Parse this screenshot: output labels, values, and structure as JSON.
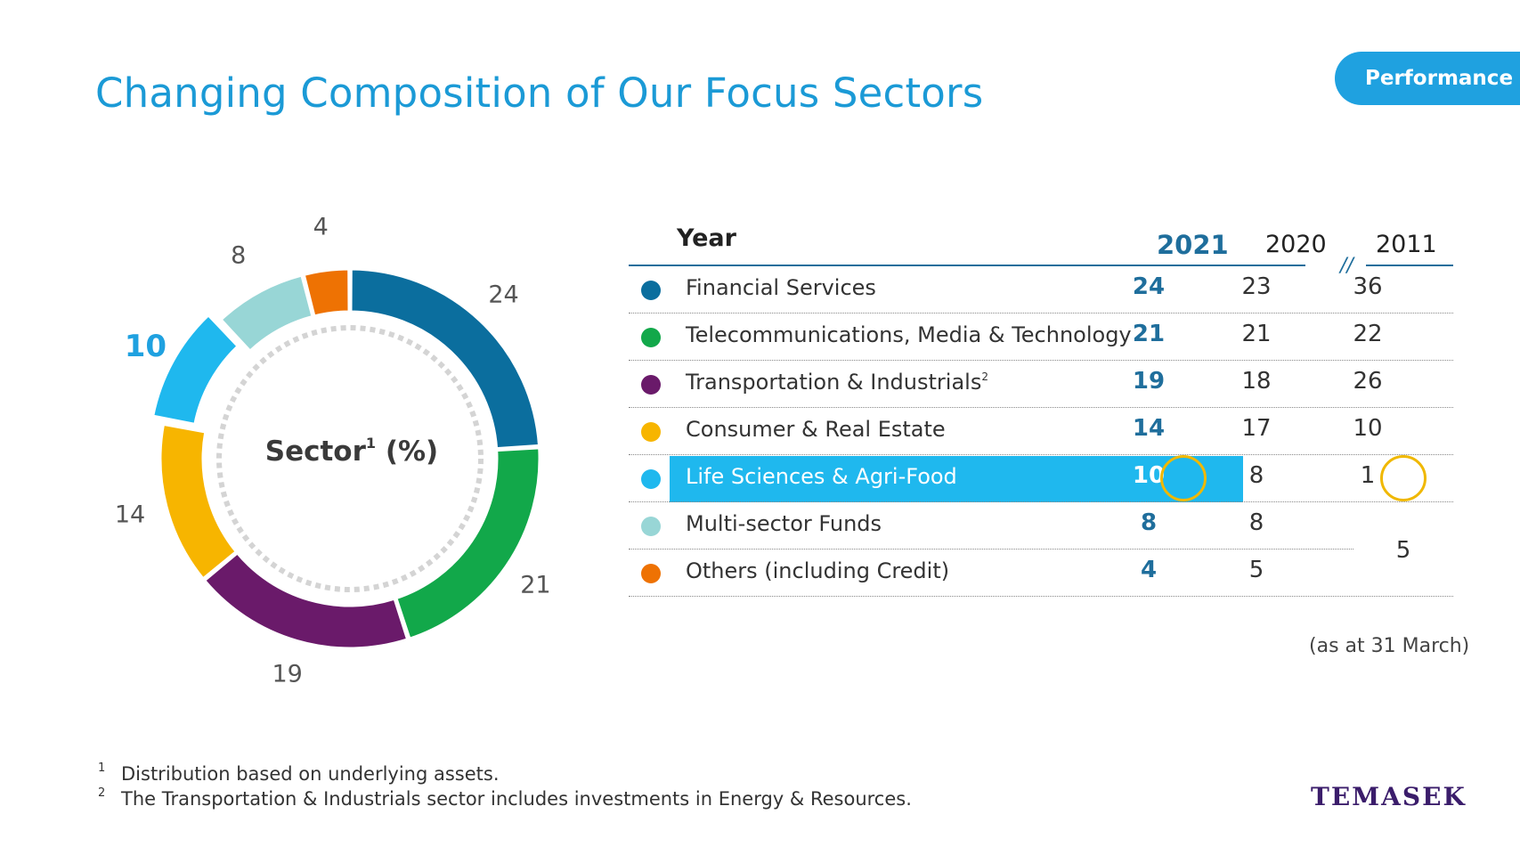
{
  "page": {
    "title": "Changing Composition of Our Focus Sectors",
    "badge": "Performance",
    "logo": "TEMASEK",
    "as_at_note": "(as at 31 March)",
    "footnotes": [
      {
        "num": "1",
        "text": "Distribution based on underlying assets."
      },
      {
        "num": "2",
        "text": "The Transportation & Industrials sector includes investments in Energy & Resources."
      }
    ]
  },
  "donut": {
    "center_label": "Sector",
    "center_sup": "1",
    "center_suffix": " (%)"
  },
  "table": {
    "year_header": "Year",
    "years": [
      "2021",
      "2020",
      "2011"
    ],
    "separator": "//",
    "merged_2011_value": "5",
    "rows": [
      {
        "label": "Financial Services",
        "sup": "",
        "color": "#0b6e9e",
        "v2021": "24",
        "v2020": "23",
        "v2011": "36"
      },
      {
        "label": "Telecommunications, Media & Technology",
        "sup": "",
        "color": "#12a84a",
        "v2021": "21",
        "v2020": "21",
        "v2011": "22"
      },
      {
        "label": "Transportation & Industrials",
        "sup": "2",
        "color": "#6a1a6a",
        "v2021": "19",
        "v2020": "18",
        "v2011": "26"
      },
      {
        "label": "Consumer & Real Estate",
        "sup": "",
        "color": "#f7b500",
        "v2021": "14",
        "v2020": "17",
        "v2011": "10"
      },
      {
        "label": "Life Sciences & Agri-Food",
        "sup": "",
        "color": "#1fb8ee",
        "v2021": "10",
        "v2020": "8",
        "v2011": "1"
      },
      {
        "label": "Multi-sector Funds",
        "sup": "",
        "color": "#98d6d6",
        "v2021": "8",
        "v2020": "8",
        "v2011": ""
      },
      {
        "label": "Others (including Credit)",
        "sup": "",
        "color": "#ee7203",
        "v2021": "4",
        "v2020": "5",
        "v2011": ""
      }
    ]
  },
  "chart_data": {
    "type": "pie",
    "categories": [
      "Financial Services",
      "Telecommunications, Media & Technology",
      "Transportation & Industrials",
      "Consumer & Real Estate",
      "Life Sciences & Agri-Food",
      "Multi-sector Funds",
      "Others (including Credit)"
    ],
    "values": [
      24,
      21,
      19,
      14,
      10,
      8,
      4
    ],
    "colors": [
      "#0b6e9e",
      "#12a84a",
      "#6a1a6a",
      "#f7b500",
      "#1fb8ee",
      "#98d6d6",
      "#ee7203"
    ],
    "data_labels": [
      "24",
      "21",
      "19",
      "14",
      "10",
      "8",
      "4"
    ],
    "highlighted": "Life Sciences & Agri-Food"
  }
}
